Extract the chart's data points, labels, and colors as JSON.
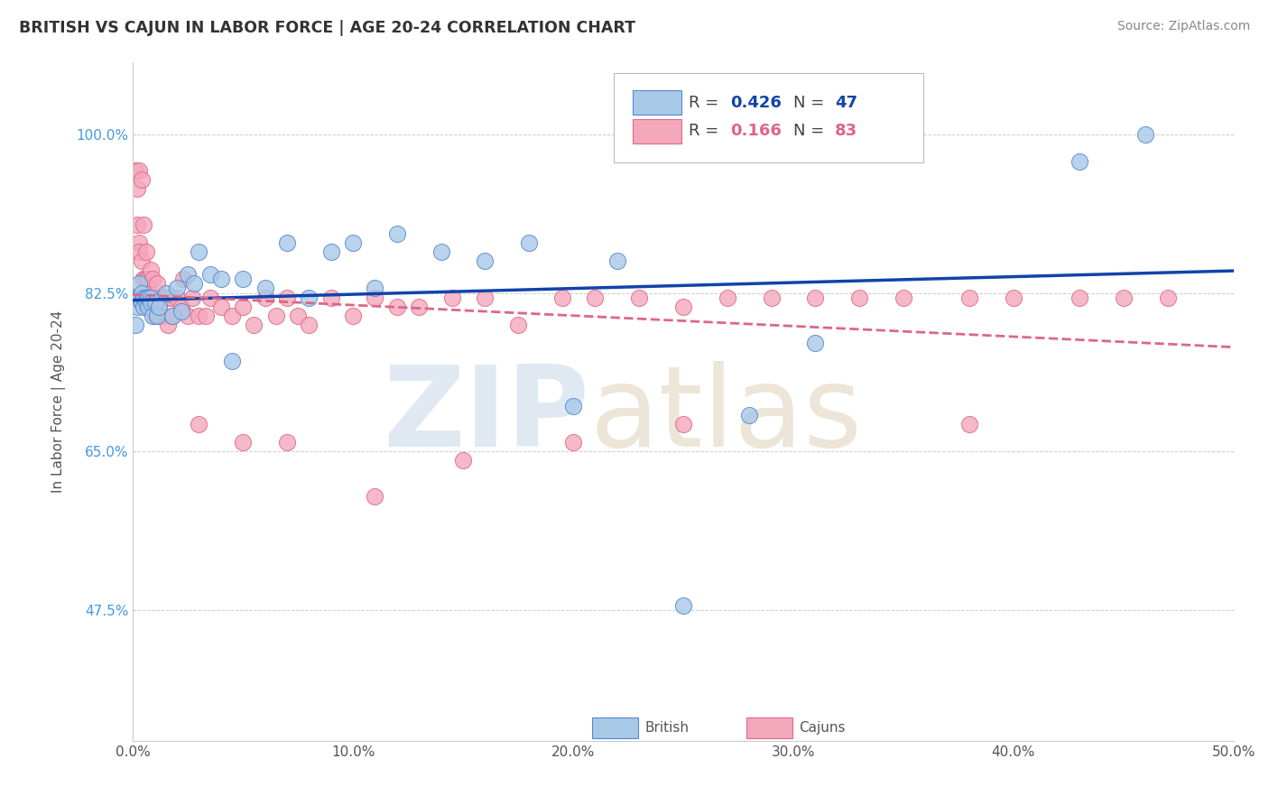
{
  "title": "BRITISH VS CAJUN IN LABOR FORCE | AGE 20-24 CORRELATION CHART",
  "source": "Source: ZipAtlas.com",
  "ylabel": "In Labor Force | Age 20-24",
  "xlim": [
    0.0,
    0.5
  ],
  "ylim": [
    0.33,
    1.08
  ],
  "xtick_labels": [
    "0.0%",
    "10.0%",
    "20.0%",
    "30.0%",
    "40.0%",
    "50.0%"
  ],
  "xtick_vals": [
    0.0,
    0.1,
    0.2,
    0.3,
    0.4,
    0.5
  ],
  "ytick_labels": [
    "47.5%",
    "65.0%",
    "82.5%",
    "100.0%"
  ],
  "ytick_vals": [
    0.475,
    0.65,
    0.825,
    1.0
  ],
  "british_color": "#a8c8e8",
  "cajun_color": "#f4a8bc",
  "british_edge": "#5588cc",
  "cajun_edge": "#e06888",
  "line_british_color": "#1144aa",
  "line_cajun_color": "#dd6688",
  "R_british": 0.426,
  "N_british": 47,
  "R_cajun": 0.166,
  "N_cajun": 83,
  "british_x": [
    0.001,
    0.002,
    0.002,
    0.003,
    0.003,
    0.004,
    0.004,
    0.005,
    0.005,
    0.006,
    0.006,
    0.007,
    0.007,
    0.008,
    0.008,
    0.009,
    0.01,
    0.011,
    0.012,
    0.015,
    0.018,
    0.02,
    0.022,
    0.025,
    0.028,
    0.03,
    0.035,
    0.04,
    0.045,
    0.05,
    0.06,
    0.07,
    0.08,
    0.09,
    0.1,
    0.11,
    0.12,
    0.14,
    0.16,
    0.18,
    0.2,
    0.22,
    0.25,
    0.28,
    0.31,
    0.43,
    0.46
  ],
  "british_y": [
    0.79,
    0.82,
    0.81,
    0.82,
    0.835,
    0.825,
    0.815,
    0.82,
    0.81,
    0.82,
    0.815,
    0.81,
    0.82,
    0.82,
    0.815,
    0.8,
    0.815,
    0.8,
    0.81,
    0.825,
    0.8,
    0.83,
    0.805,
    0.845,
    0.835,
    0.87,
    0.845,
    0.84,
    0.75,
    0.84,
    0.83,
    0.88,
    0.82,
    0.87,
    0.88,
    0.83,
    0.89,
    0.87,
    0.86,
    0.88,
    0.7,
    0.86,
    0.48,
    0.69,
    0.77,
    0.97,
    1.0
  ],
  "cajun_x": [
    0.001,
    0.001,
    0.002,
    0.002,
    0.003,
    0.003,
    0.003,
    0.004,
    0.004,
    0.004,
    0.005,
    0.005,
    0.005,
    0.006,
    0.006,
    0.006,
    0.007,
    0.007,
    0.007,
    0.008,
    0.008,
    0.008,
    0.009,
    0.009,
    0.01,
    0.01,
    0.011,
    0.011,
    0.012,
    0.013,
    0.013,
    0.014,
    0.015,
    0.016,
    0.017,
    0.018,
    0.02,
    0.022,
    0.023,
    0.025,
    0.027,
    0.03,
    0.033,
    0.035,
    0.04,
    0.045,
    0.05,
    0.055,
    0.06,
    0.065,
    0.07,
    0.075,
    0.08,
    0.09,
    0.1,
    0.11,
    0.12,
    0.13,
    0.145,
    0.16,
    0.175,
    0.195,
    0.21,
    0.23,
    0.25,
    0.27,
    0.29,
    0.31,
    0.33,
    0.35,
    0.38,
    0.4,
    0.43,
    0.45,
    0.47,
    0.03,
    0.05,
    0.07,
    0.11,
    0.15,
    0.2,
    0.25,
    0.38
  ],
  "cajun_y": [
    0.82,
    0.96,
    0.94,
    0.9,
    0.88,
    0.87,
    0.96,
    0.86,
    0.95,
    0.82,
    0.84,
    0.9,
    0.84,
    0.82,
    0.87,
    0.84,
    0.82,
    0.84,
    0.83,
    0.82,
    0.85,
    0.82,
    0.82,
    0.84,
    0.82,
    0.8,
    0.82,
    0.835,
    0.8,
    0.82,
    0.8,
    0.8,
    0.82,
    0.79,
    0.82,
    0.8,
    0.82,
    0.81,
    0.84,
    0.8,
    0.82,
    0.8,
    0.8,
    0.82,
    0.81,
    0.8,
    0.81,
    0.79,
    0.82,
    0.8,
    0.82,
    0.8,
    0.79,
    0.82,
    0.8,
    0.82,
    0.81,
    0.81,
    0.82,
    0.82,
    0.79,
    0.82,
    0.82,
    0.82,
    0.81,
    0.82,
    0.82,
    0.82,
    0.82,
    0.82,
    0.82,
    0.82,
    0.82,
    0.82,
    0.82,
    0.68,
    0.66,
    0.66,
    0.6,
    0.64,
    0.66,
    0.68,
    0.68
  ],
  "watermark_zip": "ZIP",
  "watermark_atlas": "atlas"
}
